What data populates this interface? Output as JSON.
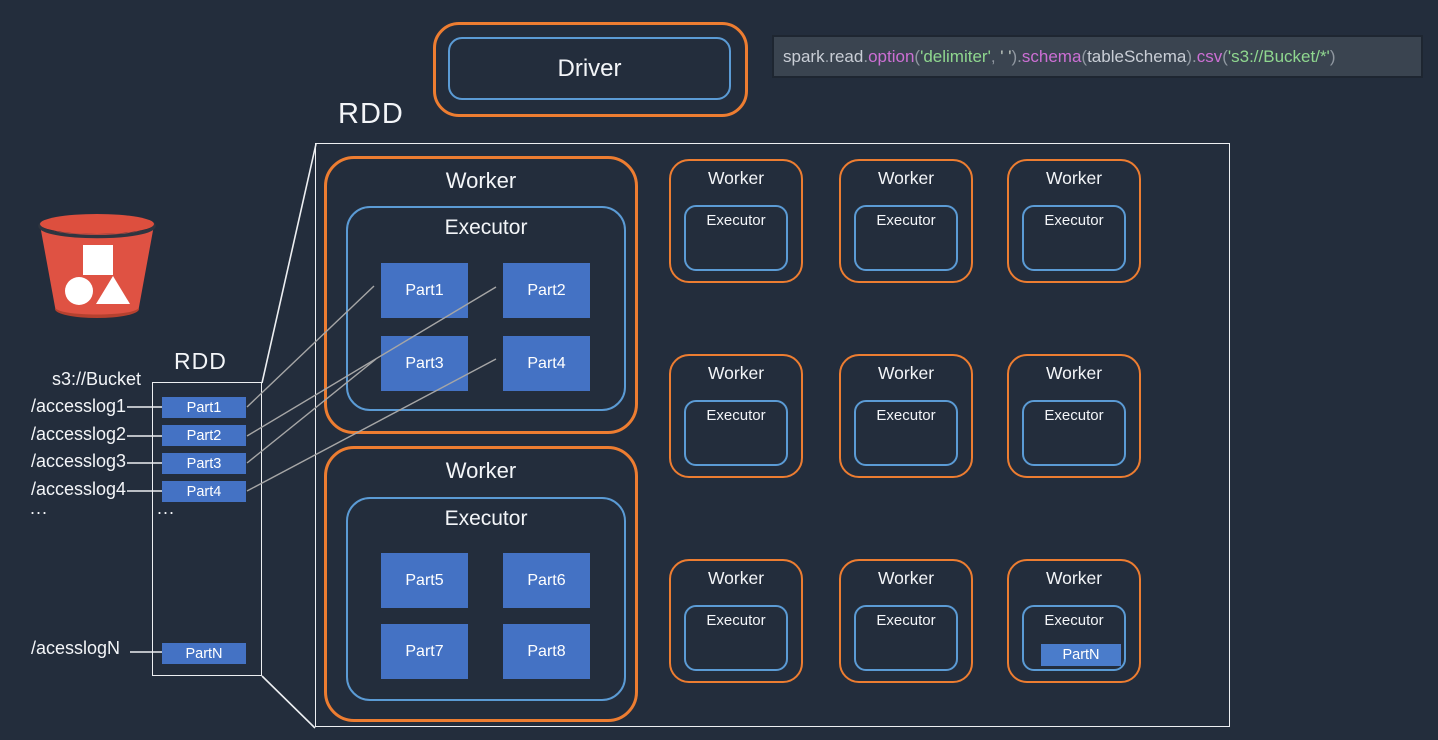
{
  "labels": {
    "rdd_cluster": "RDD"
  },
  "driver": {
    "label": "Driver"
  },
  "code": {
    "segments": [
      {
        "t": "spark",
        "c": "base"
      },
      {
        "t": ".",
        "c": "dim"
      },
      {
        "t": "read",
        "c": "base"
      },
      {
        "t": ".",
        "c": "dim"
      },
      {
        "t": "option",
        "c": "fn"
      },
      {
        "t": "(",
        "c": "dim"
      },
      {
        "t": "'delimiter'",
        "c": "str"
      },
      {
        "t": ", ",
        "c": "dim"
      },
      {
        "t": "' '",
        "c": "pale"
      },
      {
        "t": ").",
        "c": "dim"
      },
      {
        "t": "schema",
        "c": "fn"
      },
      {
        "t": "(",
        "c": "dim"
      },
      {
        "t": "tableSchema",
        "c": "base"
      },
      {
        "t": ").",
        "c": "dim"
      },
      {
        "t": "csv",
        "c": "fn"
      },
      {
        "t": "(",
        "c": "dim"
      },
      {
        "t": "'s3://Bucket/*'",
        "c": "str"
      },
      {
        "t": ")",
        "c": "dim"
      }
    ],
    "full_text": "spark.read.option('delimiter', ' ').schema(tableSchema).csv('s3://Bucket/*')"
  },
  "s3_source": {
    "icon": "s3-bucket-icon",
    "bucket_path": "s3://Bucket",
    "files": [
      "/accesslog1",
      "/accesslog2",
      "/accesslog3",
      "/accesslog4"
    ],
    "more": "...",
    "file_n": "/acesslogN"
  },
  "rdd_column": {
    "label": "RDD",
    "parts": [
      "Part1",
      "Part2",
      "Part3",
      "Part4"
    ],
    "more": "...",
    "part_n": "PartN"
  },
  "cluster": {
    "worker_a": {
      "label": "Worker",
      "executor": "Executor",
      "parts": [
        "Part1",
        "Part2",
        "Part3",
        "Part4"
      ]
    },
    "worker_b": {
      "label": "Worker",
      "executor": "Executor",
      "parts": [
        "Part5",
        "Part6",
        "Part7",
        "Part8"
      ]
    },
    "workers": [
      {
        "label": "Worker",
        "executor": "Executor"
      },
      {
        "label": "Worker",
        "executor": "Executor"
      },
      {
        "label": "Worker",
        "executor": "Executor"
      },
      {
        "label": "Worker",
        "executor": "Executor"
      },
      {
        "label": "Worker",
        "executor": "Executor"
      },
      {
        "label": "Worker",
        "executor": "Executor"
      },
      {
        "label": "Worker",
        "executor": "Executor"
      },
      {
        "label": "Worker",
        "executor": "Executor"
      },
      {
        "label": "Worker",
        "executor": "Executor",
        "part": "PartN"
      }
    ]
  },
  "colors": {
    "background": "#232D3C",
    "box_border_white": "#EDEFF2",
    "worker_orange": "#ED7D31",
    "executor_blue": "#5B9BD5",
    "partition_blue": "#4472C4",
    "connector_gray": "#A6A6A6",
    "code_background": "#3A4450",
    "code_function_magenta": "#CC6FD4",
    "code_string_green": "#8FD78F",
    "bucket_red": "#DF5142"
  }
}
